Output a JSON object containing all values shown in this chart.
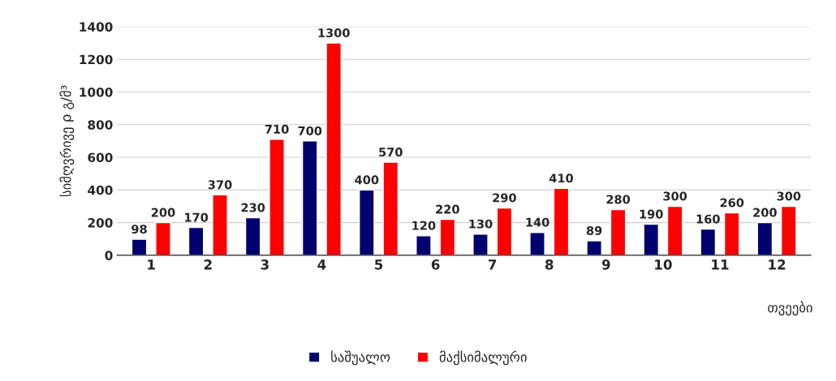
{
  "chart_data": {
    "type": "bar",
    "ylabel": "სიმღვრივე ρ გ/მ³",
    "xlabel": "თვეები",
    "categories": [
      "1",
      "2",
      "3",
      "4",
      "5",
      "6",
      "7",
      "8",
      "9",
      "10",
      "11",
      "12"
    ],
    "series": [
      {
        "name": "საშუალო",
        "color": "#00006e",
        "values": [
          98,
          170,
          230,
          700,
          400,
          120,
          130,
          140,
          89,
          190,
          160,
          200
        ]
      },
      {
        "name": "მაქსიმალური",
        "color": "#ff0000",
        "values": [
          200,
          370,
          710,
          1300,
          570,
          220,
          290,
          410,
          280,
          300,
          260,
          300
        ]
      }
    ],
    "ylim": [
      0,
      1400
    ],
    "yticks": [
      0,
      200,
      400,
      600,
      800,
      1000,
      1200,
      1400
    ],
    "grid": "y",
    "legend": "bottom",
    "data_labels": true
  }
}
